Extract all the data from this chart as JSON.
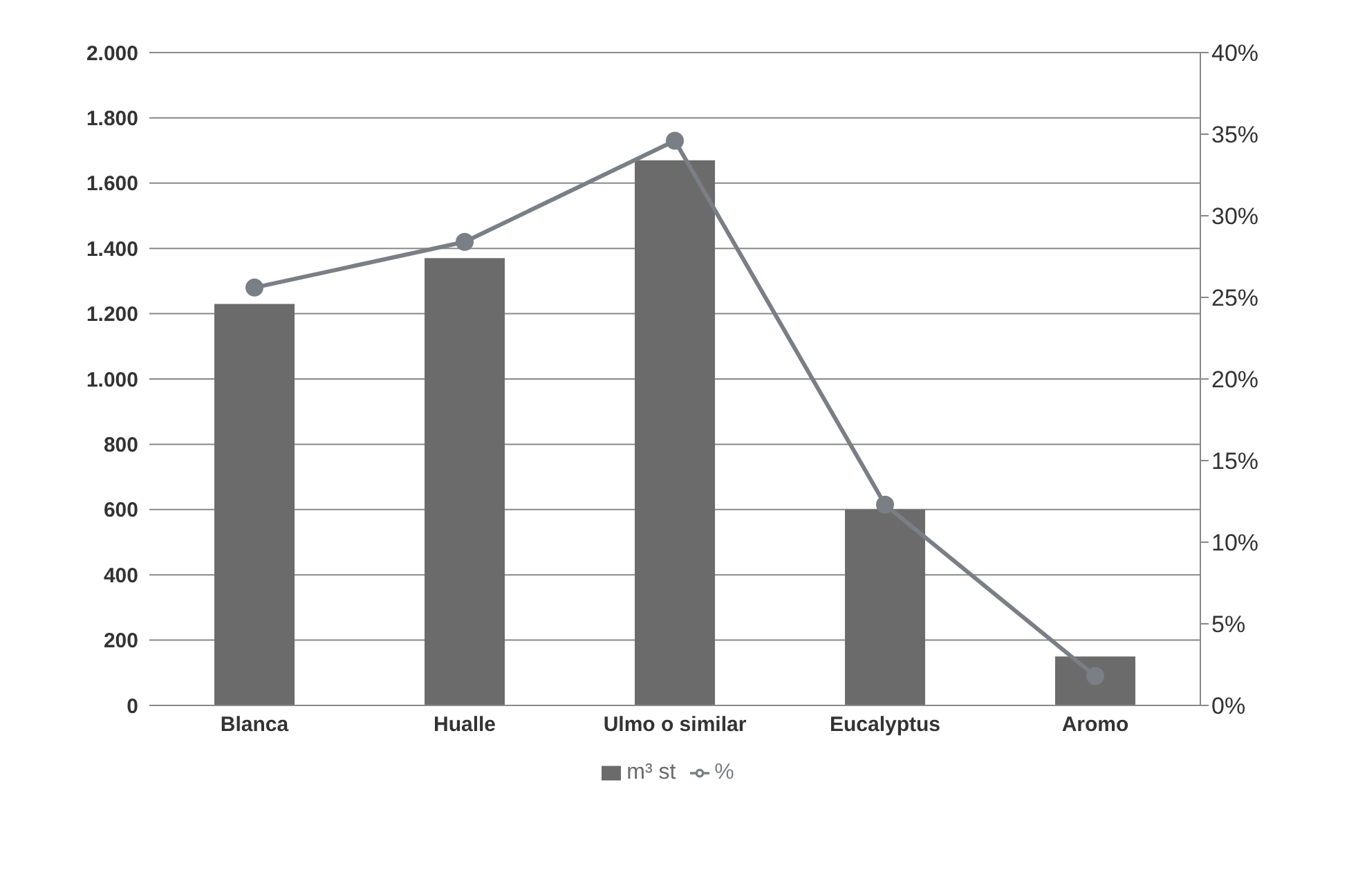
{
  "chart_data": {
    "type": "bar",
    "categories": [
      "Blanca",
      "Hualle",
      "Ulmo o similar",
      "Eucalyptus",
      "Aromo"
    ],
    "series": [
      {
        "name": "m³ st",
        "color": "#6b6b6b",
        "values": [
          1230,
          1370,
          1670,
          600,
          150
        ]
      },
      {
        "name": "%",
        "type": "line",
        "axis": "y2",
        "color": "#7a7f86",
        "marker": "circle",
        "values": [
          25.6,
          28.4,
          34.6,
          12.3,
          1.8
        ]
      }
    ],
    "ylim": [
      0,
      2000
    ],
    "yticks": [
      {
        "value": 0,
        "label": "0"
      },
      {
        "value": 200,
        "label": "200"
      },
      {
        "value": 400,
        "label": "400"
      },
      {
        "value": 600,
        "label": "600"
      },
      {
        "value": 800,
        "label": "800"
      },
      {
        "value": 1000,
        "label": "1.000"
      },
      {
        "value": 1200,
        "label": "1.200"
      },
      {
        "value": 1400,
        "label": "1.400"
      },
      {
        "value": 1600,
        "label": "1.600"
      },
      {
        "value": 1800,
        "label": "1.800"
      },
      {
        "value": 2000,
        "label": "2.000"
      }
    ],
    "y2lim": [
      0,
      40
    ],
    "y2ticks": [
      {
        "value": 0,
        "label": "0%"
      },
      {
        "value": 5,
        "label": "5%"
      },
      {
        "value": 10,
        "label": "10%"
      },
      {
        "value": 15,
        "label": "15%"
      },
      {
        "value": 20,
        "label": "20%"
      },
      {
        "value": 25,
        "label": "25%"
      },
      {
        "value": 30,
        "label": "30%"
      },
      {
        "value": 35,
        "label": "35%"
      },
      {
        "value": 40,
        "label": "40%"
      }
    ],
    "grid": "y",
    "legend": "bottom"
  }
}
